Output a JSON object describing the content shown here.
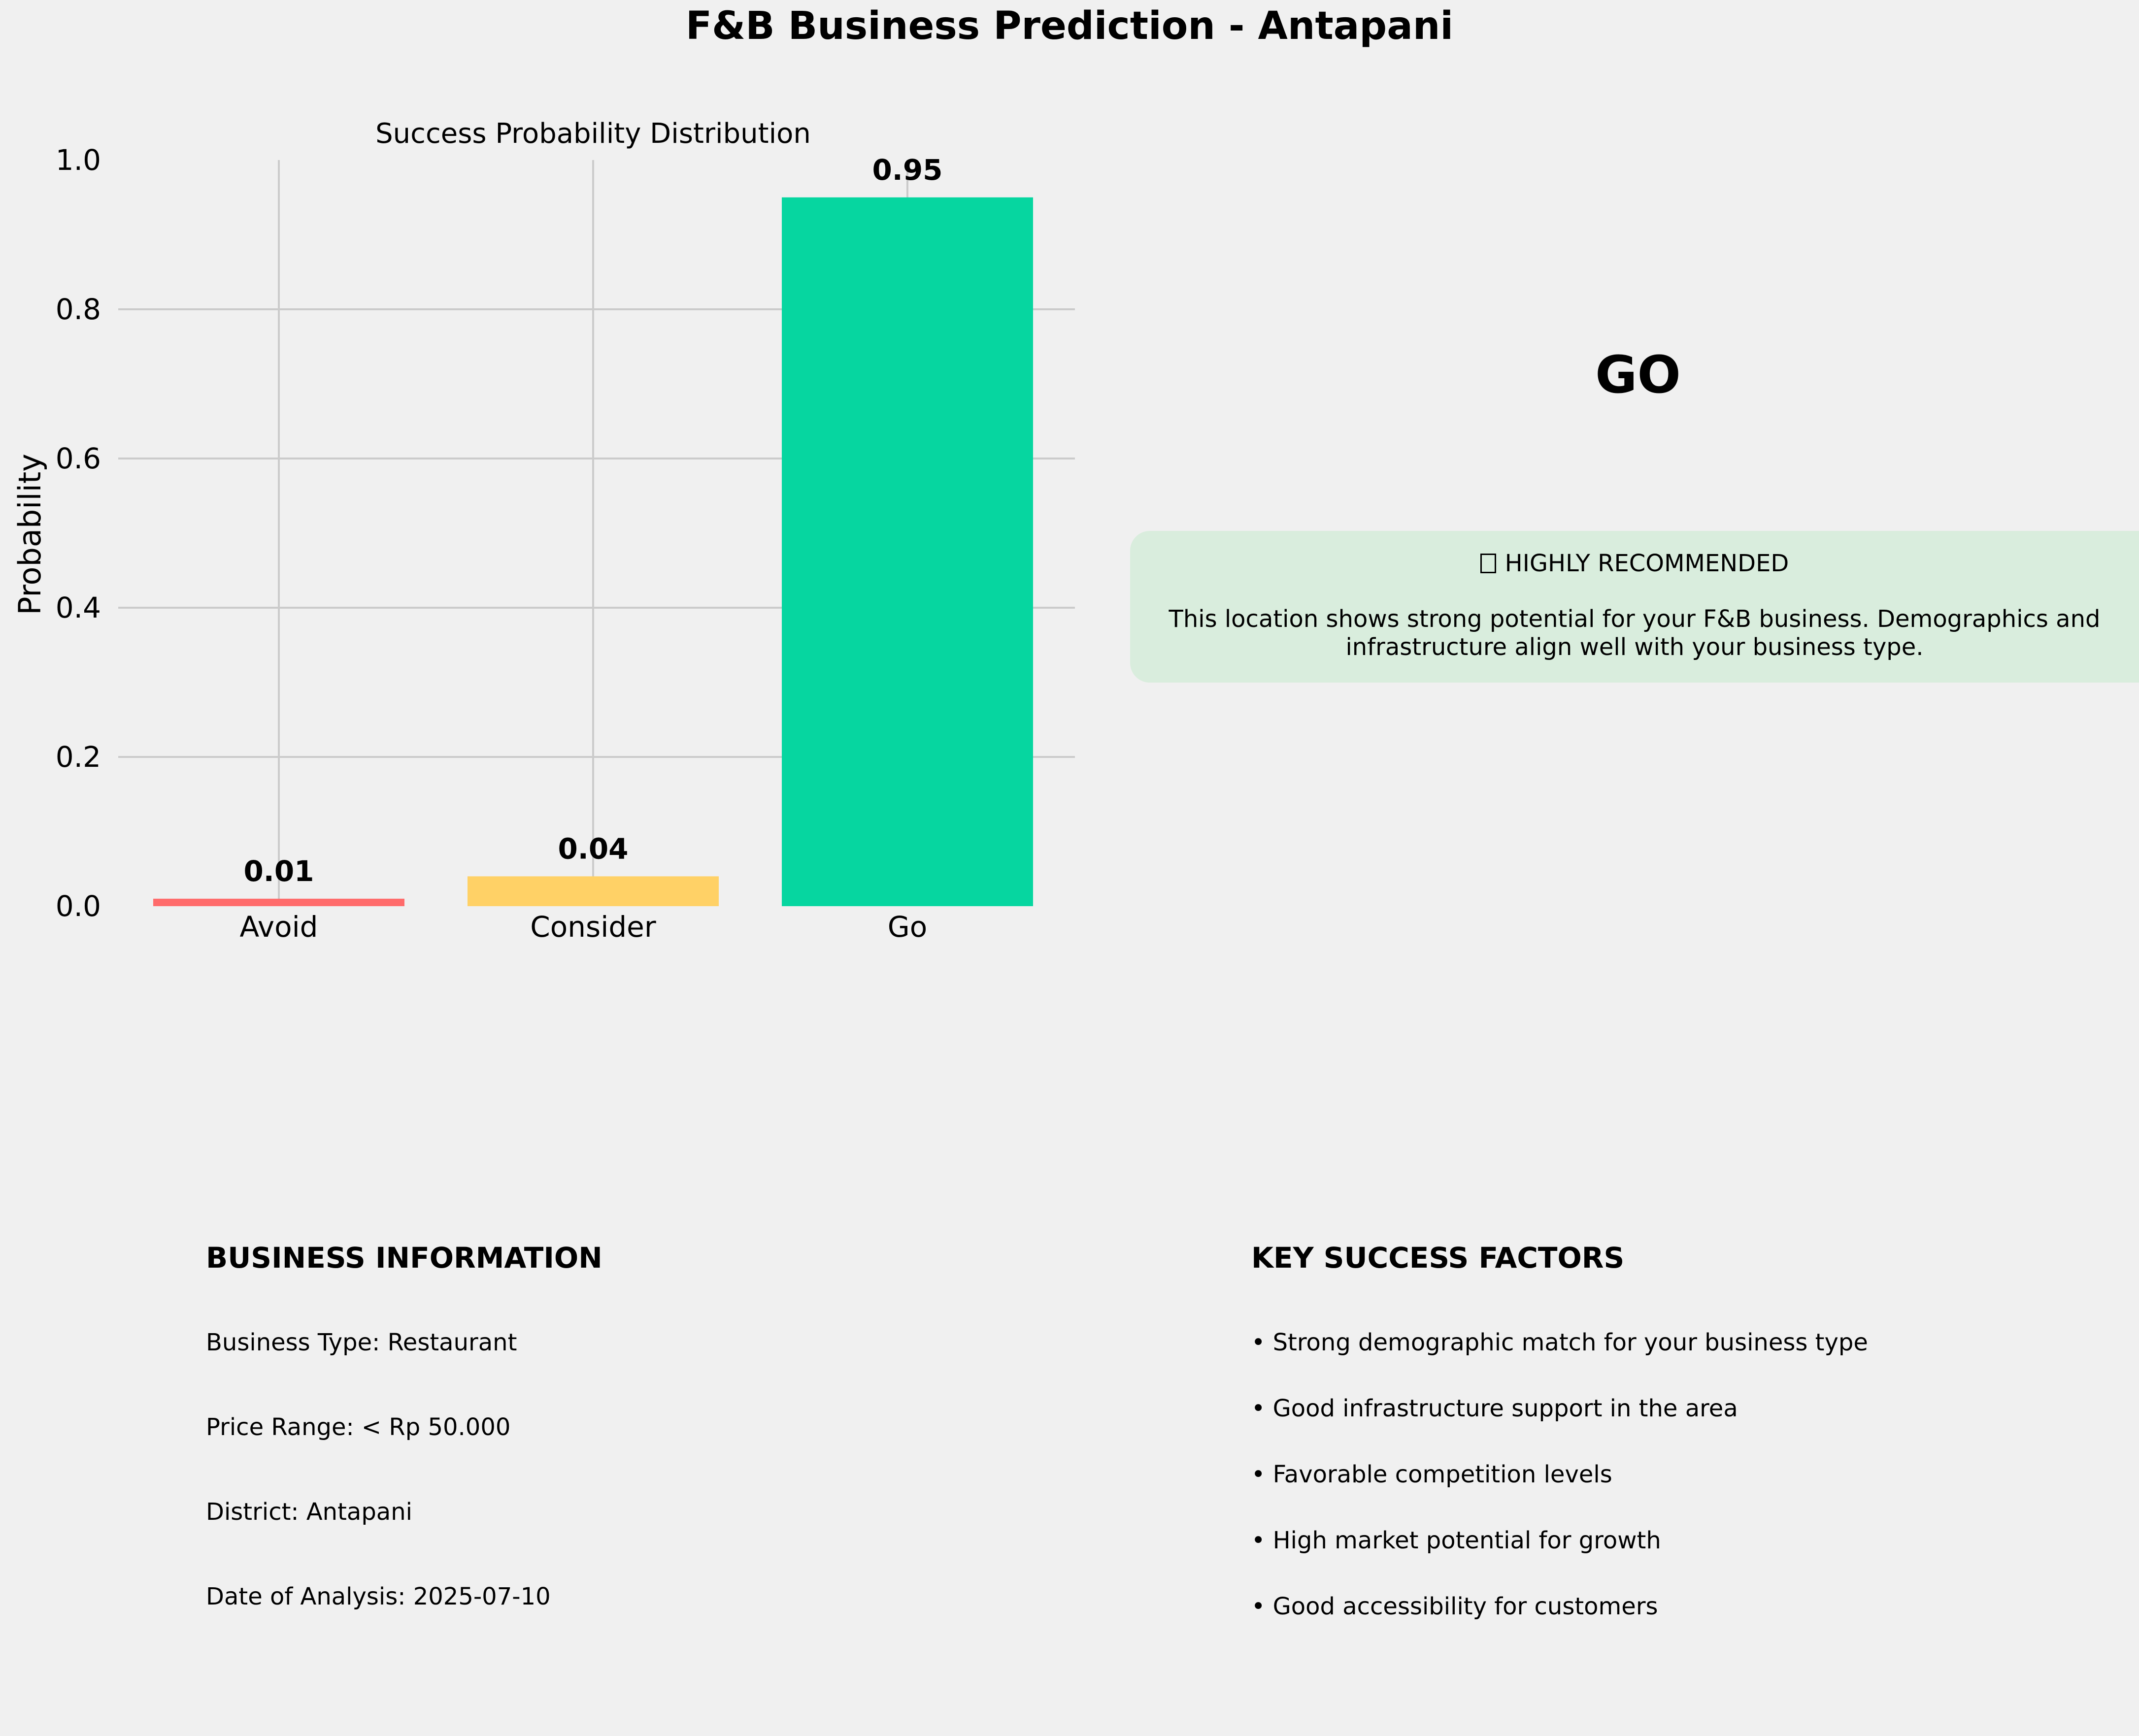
{
  "suptitle": "F&B Business Prediction - Antapani",
  "chart_data": {
    "type": "bar",
    "title": "Success Probability Distribution",
    "xlabel": "",
    "ylabel": "Probability",
    "categories": [
      "Avoid",
      "Consider",
      "Go"
    ],
    "values": [
      0.01,
      0.04,
      0.95
    ],
    "value_labels": [
      "0.01",
      "0.04",
      "0.95"
    ],
    "colors": [
      "#ff6b6b",
      "#ffd166",
      "#06d6a0"
    ],
    "ylim": [
      0,
      1.0
    ],
    "yticks": [
      "0.0",
      "0.2",
      "0.4",
      "0.6",
      "0.8",
      "1.0"
    ],
    "grid": true
  },
  "verdict": "GO",
  "recommendation": {
    "heading": "HIGHLY RECOMMENDED",
    "icon": "check-icon",
    "line1": "This location shows strong potential for your F&B business. Demographics and",
    "line2": "infrastructure align well with your business type.",
    "color": "#d9eddd"
  },
  "business_info": {
    "title": "BUSINESS INFORMATION",
    "business_type": "Business Type: Restaurant",
    "price_range": "Price Range: < Rp 50.000",
    "district": "District: Antapani",
    "date": "Date of Analysis: 2025-07-10"
  },
  "key_factors": {
    "title": "KEY SUCCESS FACTORS",
    "items": [
      "• Strong demographic match for your business type",
      "• Good infrastructure support in the area",
      "• Favorable competition levels",
      "• High market potential for growth",
      "• Good accessibility for customers"
    ]
  }
}
